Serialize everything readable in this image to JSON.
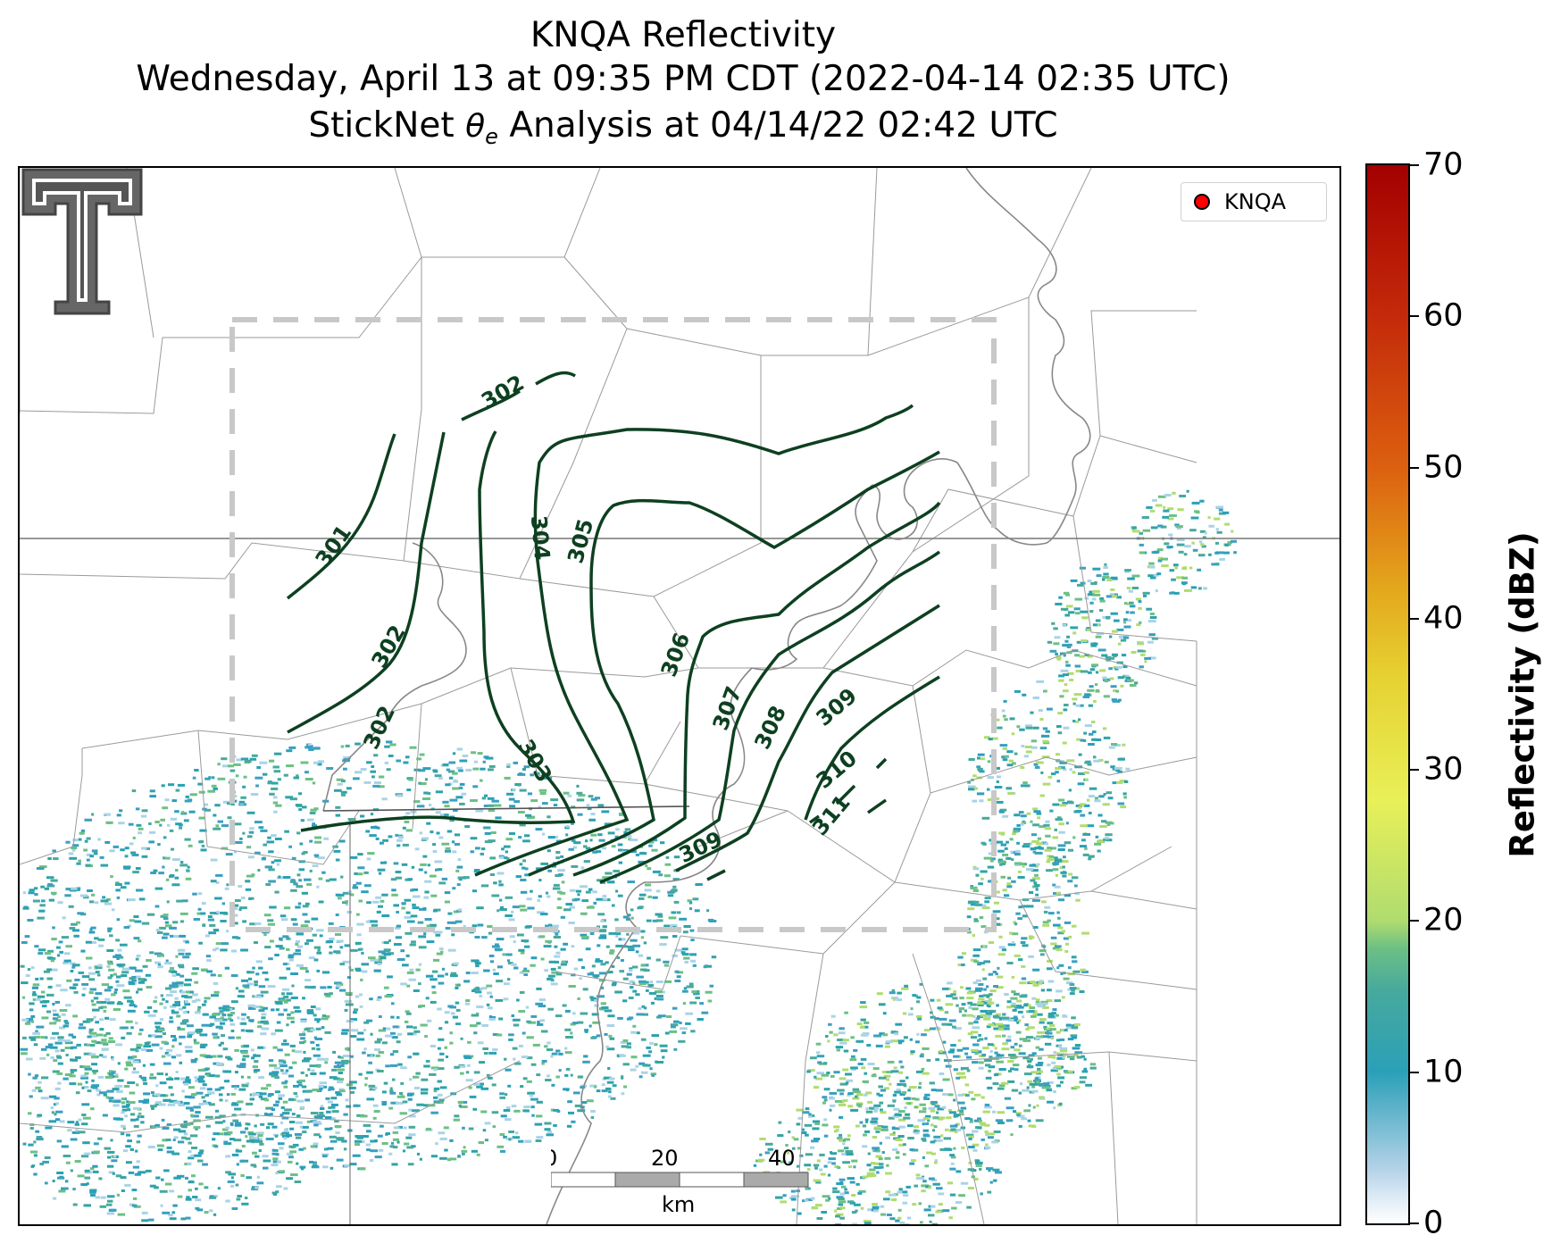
{
  "title": {
    "line1": "KNQA Reflectivity",
    "line2": "Wednesday, April 13 at 09:35 PM CDT (2022-04-14 02:35 UTC)",
    "line3_pre": "StickNet ",
    "line3_theta": "θ",
    "line3_sub": "e",
    "line3_post": " Analysis at 04/14/22 02:42 UTC"
  },
  "legend": {
    "label": "KNQA",
    "marker_color": "#ff0000"
  },
  "scale_bar": {
    "ticks": [
      "0",
      "20",
      "40"
    ],
    "unit": "km"
  },
  "colorbar": {
    "label": "Reflectivity (dBZ)",
    "ticks": [
      "0",
      "10",
      "20",
      "30",
      "40",
      "50",
      "60",
      "70"
    ],
    "min": 0,
    "max": 70,
    "colormap": [
      "#ffffff",
      "#2aa0b8",
      "#6cc084",
      "#e8f058",
      "#e3a71c",
      "#dc6010",
      "#a30000"
    ]
  },
  "contours": {
    "color": "#0d4020",
    "labels": [
      "301",
      "302",
      "302",
      "302",
      "303",
      "304",
      "305",
      "306",
      "307",
      "308",
      "309",
      "309",
      "310",
      "311"
    ]
  },
  "logo": {
    "name": "Texas Tech Double T"
  }
}
